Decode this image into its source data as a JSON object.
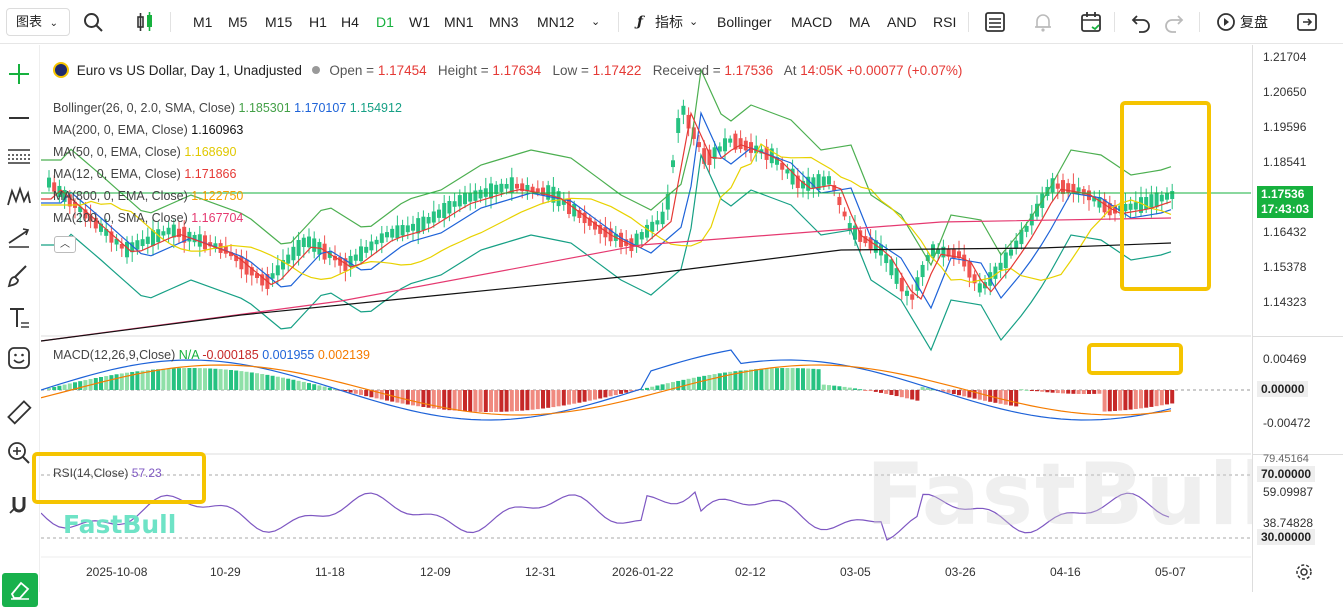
{
  "toolbar": {
    "chart_type": "图表",
    "timeframes": [
      "M1",
      "M5",
      "M15",
      "H1",
      "H4",
      "D1",
      "W1",
      "MN1",
      "MN3",
      "MN12"
    ],
    "active_timeframe": "D1",
    "indicators_label": "指标",
    "indicator_shortcuts": [
      "Bollinger",
      "MACD",
      "MA",
      "AND",
      "RSI"
    ],
    "replay_label": "复盘"
  },
  "header": {
    "instrument": "Euro vs US Dollar, Day 1, Unadjusted",
    "open_label": "Open =",
    "open": "1.17454",
    "high_label": "Height =",
    "high": "1.17634",
    "low_label": "Low =",
    "low": "1.17422",
    "received_label": "Received =",
    "received": "1.17536",
    "at_label": "At",
    "at": "14:05K",
    "change": "+0.00077 (+0.07%)"
  },
  "indicators": [
    {
      "label": "Bollinger(26, 0, 2.0, SMA, Close)",
      "values": [
        "1.185301",
        "1.170107",
        "1.154912"
      ],
      "colors": [
        "#4caf50",
        "#1e63d8",
        "#16a085"
      ]
    },
    {
      "label": "MA(200, 0, EMA, Close)",
      "values": [
        "1.160963"
      ],
      "colors": [
        "#111111"
      ]
    },
    {
      "label": "MA(50, 0, EMA, Close)",
      "values": [
        "1.168690"
      ],
      "colors": [
        "#e8d200"
      ]
    },
    {
      "label": "MA(12, 0, EMA, Close)",
      "values": [
        "1.171866"
      ],
      "colors": [
        "#e53935"
      ]
    },
    {
      "label": "MA(800, 0, EMA, Close)",
      "values": [
        "1.122750"
      ],
      "colors": [
        "#f5a000"
      ]
    },
    {
      "label": "MA(200, 0, SMA, Close)",
      "values": [
        "1.167704"
      ],
      "colors": [
        "#e53970"
      ]
    }
  ],
  "macd": {
    "label": "MACD(12,26,9,Close)",
    "values": [
      "N/A",
      "-0.000185",
      "0.001955",
      "0.002139"
    ],
    "colors": [
      "#16b13e",
      "#c62828",
      "#1e63d8",
      "#f57c00"
    ]
  },
  "rsi": {
    "label": "RSI(14,Close)",
    "value": "57.23"
  },
  "price_axis": {
    "main": [
      "1.21704",
      "1.20650",
      "1.19596",
      "1.18541",
      "1.16432",
      "1.15378",
      "1.14323"
    ],
    "current_price": "1.17536",
    "countdown": "17:43:03",
    "macd": [
      "0.00469",
      "0.00000",
      "-0.00472"
    ],
    "rsi": [
      "70.00000",
      "59.09987",
      "38.74828",
      "30.00000"
    ],
    "rsi_top": "79.45164"
  },
  "dates": [
    "2025-10-08",
    "10-29",
    "11-18",
    "12-09",
    "12-31",
    "2026-01-22",
    "02-12",
    "03-05",
    "03-26",
    "04-16",
    "05-07"
  ],
  "watermark": "FastBull",
  "colors": {
    "up": "#26c281",
    "down": "#ef5350",
    "accent": "#16b13e",
    "highlight": "#f5c400"
  }
}
